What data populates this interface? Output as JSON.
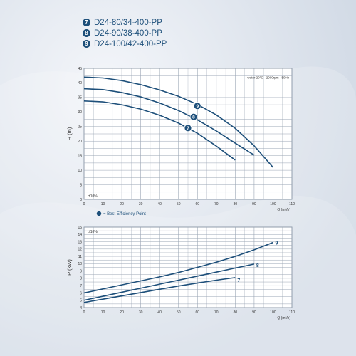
{
  "models": [
    {
      "badge": "7",
      "name": "D24-80/34-400-PP"
    },
    {
      "badge": "8",
      "name": "D24-90/38-400-PP"
    },
    {
      "badge": "9",
      "name": "D24-100/42-400-PP"
    }
  ],
  "colors": {
    "curve": "#1d4f7a",
    "grid": "#9aa5b4",
    "text": "#1d4f7a",
    "panel": "#ffffff"
  },
  "chart_data": [
    {
      "type": "line",
      "ylabel": "H (m)",
      "xlabel": "Q (m³/h)",
      "xlim": [
        0,
        110
      ],
      "ylim": [
        0,
        45
      ],
      "xticks": [
        0,
        10,
        20,
        30,
        40,
        50,
        60,
        70,
        80,
        90,
        100,
        110
      ],
      "yticks": [
        0,
        5,
        10,
        15,
        20,
        25,
        30,
        35,
        40,
        45
      ],
      "grid": true,
      "note": "water 20°C - 2900rpm - 50Hz",
      "tolerance": "±10%",
      "bep_legend": "= Best Efficiency Point",
      "series": [
        {
          "name": "7",
          "x": [
            0,
            10,
            20,
            30,
            40,
            50,
            60,
            70,
            80
          ],
          "y": [
            33.8,
            33.5,
            32.5,
            31,
            28.9,
            26.2,
            22.7,
            18.3,
            13.5
          ],
          "bep": {
            "x": 55,
            "y": 24.5
          }
        },
        {
          "name": "8",
          "x": [
            0,
            10,
            20,
            30,
            40,
            50,
            60,
            70,
            80,
            90
          ],
          "y": [
            38,
            37.7,
            36.7,
            35.2,
            33.1,
            30.5,
            27.3,
            23.5,
            19.3,
            15.2
          ],
          "bep": {
            "x": 58,
            "y": 28.3
          }
        },
        {
          "name": "9",
          "x": [
            0,
            10,
            20,
            30,
            40,
            50,
            60,
            70,
            80,
            90,
            100
          ],
          "y": [
            42,
            41.7,
            40.8,
            39.4,
            37.6,
            35.4,
            32.6,
            29,
            24.4,
            18.4,
            11
          ]
        },
        {
          "bep": {
            "x": 60,
            "y": 32.1
          }
        }
      ]
    },
    {
      "type": "line",
      "ylabel": "P (kW)",
      "xlabel": "Q (m³/h)",
      "xlim": [
        0,
        110
      ],
      "ylim": [
        4,
        15
      ],
      "xticks": [
        0,
        10,
        20,
        30,
        40,
        50,
        60,
        70,
        80,
        90,
        100,
        110
      ],
      "yticks": [
        4,
        5,
        6,
        7,
        8,
        9,
        10,
        11,
        12,
        13,
        14,
        15
      ],
      "grid": true,
      "tolerance": "±10%",
      "series": [
        {
          "name": "7",
          "x": [
            0,
            10,
            20,
            30,
            40,
            50,
            60,
            70,
            80
          ],
          "y": [
            4.7,
            5.15,
            5.6,
            6.05,
            6.5,
            6.95,
            7.35,
            7.75,
            8.1
          ]
        },
        {
          "name": "8",
          "x": [
            0,
            10,
            20,
            30,
            40,
            50,
            60,
            70,
            80,
            90
          ],
          "y": [
            5,
            5.55,
            6.1,
            6.65,
            7.2,
            7.75,
            8.3,
            8.85,
            9.4,
            9.95
          ]
        },
        {
          "name": "9",
          "x": [
            0,
            10,
            20,
            30,
            40,
            50,
            60,
            70,
            80,
            90,
            100
          ],
          "y": [
            6,
            6.55,
            7.1,
            7.65,
            8.2,
            8.8,
            9.5,
            10.2,
            11,
            11.9,
            12.9
          ]
        }
      ]
    }
  ]
}
